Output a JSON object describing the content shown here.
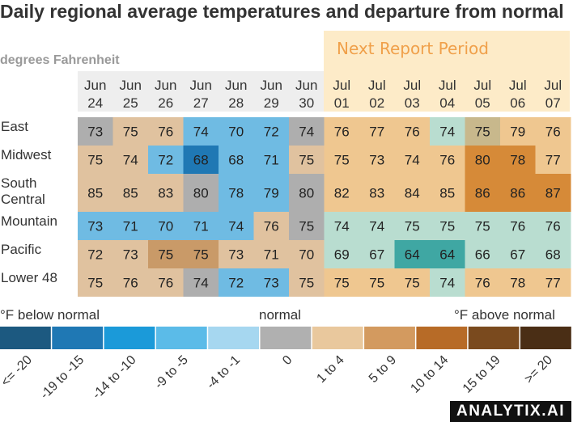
{
  "chart_data": {
    "type": "heatmap",
    "title": "Daily regional average temperatures and departure from normal",
    "subtitle": "degrees Fahrenheit",
    "period_label": "Next Report Period",
    "columns": [
      {
        "month": "Jun",
        "day": "24"
      },
      {
        "month": "Jun",
        "day": "25"
      },
      {
        "month": "Jun",
        "day": "26"
      },
      {
        "month": "Jun",
        "day": "27"
      },
      {
        "month": "Jun",
        "day": "28"
      },
      {
        "month": "Jun",
        "day": "29"
      },
      {
        "month": "Jun",
        "day": "30"
      },
      {
        "month": "Jul",
        "day": "01"
      },
      {
        "month": "Jul",
        "day": "02"
      },
      {
        "month": "Jul",
        "day": "03"
      },
      {
        "month": "Jul",
        "day": "04"
      },
      {
        "month": "Jul",
        "day": "05"
      },
      {
        "month": "Jul",
        "day": "06"
      },
      {
        "month": "Jul",
        "day": "07"
      }
    ],
    "next_period_start_index": 7,
    "rows": [
      {
        "region": [
          "East"
        ],
        "temps": [
          73,
          75,
          76,
          74,
          70,
          72,
          74,
          76,
          77,
          76,
          74,
          75,
          79,
          76
        ],
        "departure_class": [
          5,
          6,
          6,
          3,
          3,
          3,
          5,
          6,
          6,
          6,
          4,
          5,
          6,
          6
        ]
      },
      {
        "region": [
          "Midwest"
        ],
        "temps": [
          75,
          74,
          72,
          68,
          68,
          71,
          75,
          75,
          73,
          74,
          76,
          80,
          78,
          77
        ],
        "departure_class": [
          6,
          6,
          3,
          1,
          3,
          3,
          6,
          6,
          6,
          6,
          6,
          8,
          8,
          6
        ]
      },
      {
        "region": [
          "South",
          "Central"
        ],
        "temps": [
          85,
          85,
          83,
          80,
          78,
          79,
          80,
          82,
          83,
          84,
          85,
          86,
          86,
          87
        ],
        "departure_class": [
          6,
          6,
          6,
          5,
          3,
          3,
          5,
          6,
          6,
          6,
          6,
          8,
          8,
          8
        ]
      },
      {
        "region": [
          "Mountain"
        ],
        "temps": [
          73,
          71,
          70,
          71,
          74,
          76,
          75,
          74,
          74,
          75,
          75,
          75,
          76,
          76
        ],
        "departure_class": [
          3,
          3,
          3,
          3,
          3,
          6,
          5,
          4,
          4,
          4,
          4,
          4,
          4,
          4
        ]
      },
      {
        "region": [
          "Pacific"
        ],
        "temps": [
          72,
          73,
          75,
          75,
          73,
          71,
          70,
          69,
          67,
          64,
          64,
          66,
          67,
          68
        ],
        "departure_class": [
          6,
          6,
          7,
          7,
          6,
          6,
          6,
          4,
          4,
          2,
          2,
          4,
          4,
          4
        ]
      },
      {
        "region": [
          "Lower 48"
        ],
        "temps": [
          75,
          76,
          76,
          74,
          72,
          73,
          75,
          75,
          75,
          75,
          74,
          76,
          78,
          77
        ],
        "departure_class": [
          6,
          6,
          6,
          5,
          3,
          3,
          6,
          6,
          6,
          6,
          4,
          6,
          6,
          6
        ]
      }
    ],
    "legend": {
      "below_label": "°F below normal",
      "normal_label": "normal",
      "above_label": "°F above normal",
      "bins": [
        {
          "label": "<= -20",
          "color": "#1c5980"
        },
        {
          "label": "-19 to -15",
          "color": "#1f78b4"
        },
        {
          "label": "-14 to -10",
          "color": "#1b9ad9"
        },
        {
          "label": "-9 to -5",
          "color": "#5bbbe8"
        },
        {
          "label": "-4 to -1",
          "color": "#a6d7f0"
        },
        {
          "label": "0",
          "color": "#b0b0b0"
        },
        {
          "label": "1 to 4",
          "color": "#e9c89d"
        },
        {
          "label": "5 to 9",
          "color": "#d39a5f"
        },
        {
          "label": "10 to 14",
          "color": "#b76b27"
        },
        {
          "label": "15 to 19",
          "color": "#7a4a1e"
        },
        {
          "label": ">= 20",
          "color": "#4a2e15"
        }
      ]
    }
  },
  "cell_colors": {
    "past": [
      "#1c5980",
      "#1f78b4",
      "#3a91c7",
      "#6fbbe3",
      "#9cd1ec",
      "#aeaeae",
      "#e0c29f",
      "#c99a68",
      "#b07038"
    ],
    "next": [
      "#1c5980",
      "#1f78b4",
      "#3fa7a3",
      "#6fbbe3",
      "#b9ddd0",
      "#c8b88c",
      "#efc790",
      "#e6a968",
      "#d68a38"
    ]
  },
  "branding": {
    "text": "ANALYTIX.AI"
  }
}
